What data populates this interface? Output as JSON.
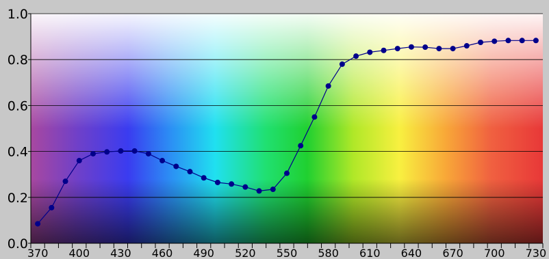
{
  "chart_data": {
    "type": "line",
    "title": "",
    "xlabel": "",
    "ylabel": "",
    "xlim": [
      365,
      735
    ],
    "ylim": [
      0,
      1
    ],
    "x_ticks": [
      370,
      400,
      430,
      460,
      490,
      520,
      550,
      580,
      610,
      640,
      670,
      700,
      730
    ],
    "y_ticks": [
      0,
      0.2,
      0.4,
      0.6,
      0.8,
      1
    ],
    "y_tick_labels": [
      "0.0",
      "0.2",
      "0.4",
      "0.6",
      "0.8",
      "1.0"
    ],
    "grid": "horizontal",
    "background": "visible-spectrum-gradient",
    "colors": {
      "line": "#00008b",
      "marker": "#00008b",
      "grid": "#000000",
      "frame_bg": "#c8c8c8"
    },
    "series": [
      {
        "x": [
          370,
          380,
          390,
          400,
          410,
          420,
          430,
          440,
          450,
          460,
          470,
          480,
          490,
          500,
          510,
          520,
          530,
          540,
          550,
          560,
          570,
          580,
          590,
          600,
          610,
          620,
          630,
          640,
          650,
          660,
          670,
          680,
          690,
          700,
          710,
          720,
          730
        ],
        "values": [
          0.085,
          0.155,
          0.27,
          0.36,
          0.39,
          0.398,
          0.402,
          0.402,
          0.39,
          0.36,
          0.335,
          0.312,
          0.285,
          0.265,
          0.258,
          0.245,
          0.228,
          0.235,
          0.305,
          0.425,
          0.55,
          0.685,
          0.78,
          0.815,
          0.832,
          0.84,
          0.848,
          0.855,
          0.854,
          0.848,
          0.848,
          0.86,
          0.875,
          0.88,
          0.883,
          0.883,
          0.883
        ]
      }
    ]
  }
}
